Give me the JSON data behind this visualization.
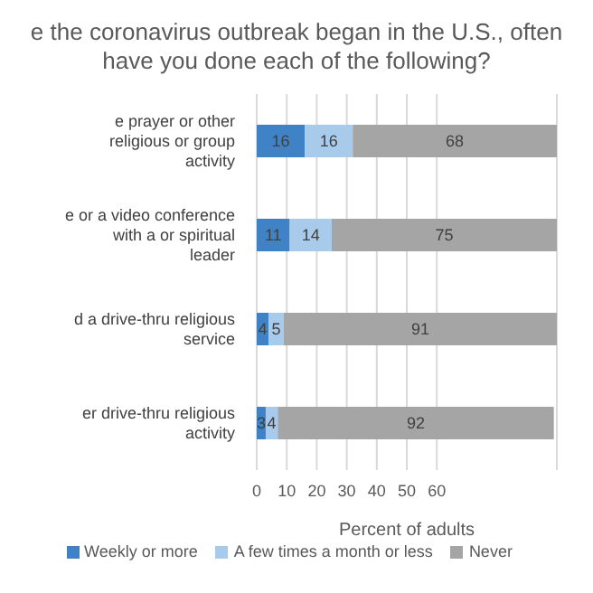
{
  "chart_data": {
    "type": "bar",
    "orientation": "horizontal",
    "stacked": true,
    "title": "e the coronavirus outbreak began in the U.S., often have you done each of the following?",
    "categories": [
      "e prayer or other religious or group activity",
      "e or a video conference with a or spiritual leader",
      "d a drive-thru religious service",
      "er drive-thru religious activity"
    ],
    "series": [
      {
        "name": "Weekly or more",
        "color": "#3f83c6",
        "values": [
          16,
          11,
          4,
          3
        ]
      },
      {
        "name": "A few times a month or less",
        "color": "#a9cbeb",
        "values": [
          16,
          14,
          5,
          4
        ]
      },
      {
        "name": "Never",
        "color": "#a5a5a5",
        "values": [
          68,
          75,
          91,
          92
        ]
      }
    ],
    "xlim": [
      0,
      100
    ],
    "xticks": [
      0,
      10,
      20,
      30,
      40,
      50,
      60
    ],
    "xlabel": "Percent of adults",
    "grid": "x",
    "legend": "bottom",
    "data_labels": true
  }
}
